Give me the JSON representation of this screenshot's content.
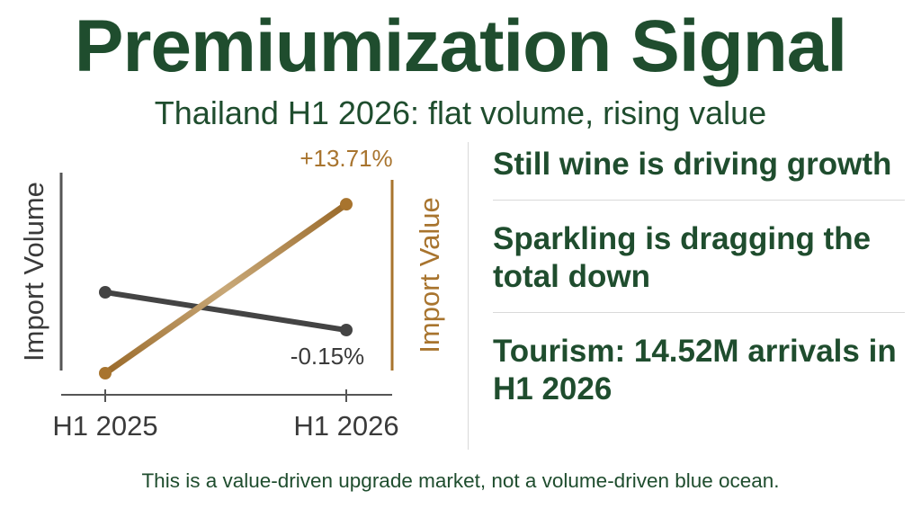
{
  "header": {
    "title": "Premiumization Signal",
    "subtitle": "Thailand H1 2026: flat volume, rising value"
  },
  "chart_data": {
    "type": "line",
    "categories": [
      "H1 2025",
      "H1 2026"
    ],
    "series": [
      {
        "name": "Import Volume",
        "values": [
          0.0,
          -0.15
        ],
        "color": "#444444",
        "end_label": "-0.15%"
      },
      {
        "name": "Import Value",
        "values": [
          0.0,
          13.71
        ],
        "color": "#a8742e",
        "end_label": "+13.71%"
      }
    ],
    "left_axis_label": "Import Volume",
    "right_axis_label": "Import Value",
    "grid": false,
    "colors": {
      "volume": "#444444",
      "value": "#a8742e",
      "axis": "#555555"
    }
  },
  "key_points": [
    "Still wine is driving growth",
    "Sparkling is dragging the total down",
    "Tourism: 14.52M arrivals in H1 2026"
  ],
  "footer": "This is a value-driven upgrade market, not a volume-driven blue ocean.",
  "colors": {
    "primary": "#1f4d2e",
    "divider": "#d9d9d9"
  }
}
